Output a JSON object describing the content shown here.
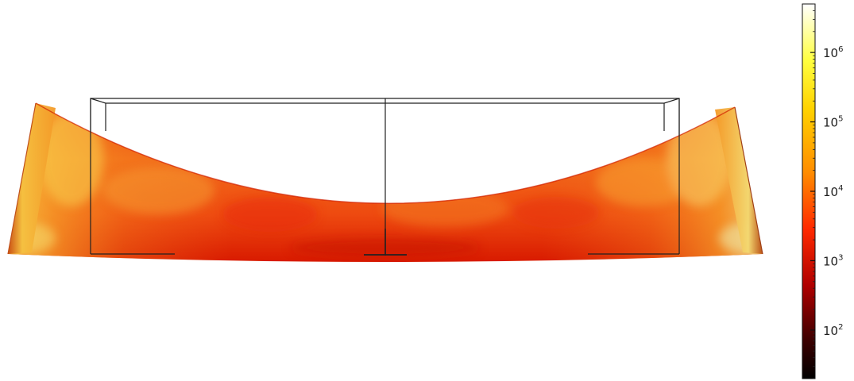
{
  "chart_data": {
    "type": "heatmap",
    "title": "",
    "colorbar": {
      "scale": "log",
      "range": [
        20,
        5000000
      ],
      "ticks": [
        {
          "value": 100,
          "base": "10",
          "exponent": "2"
        },
        {
          "value": 1000,
          "base": "10",
          "exponent": "3"
        },
        {
          "value": 10000,
          "base": "10",
          "exponent": "4"
        },
        {
          "value": 100000,
          "base": "10",
          "exponent": "5"
        },
        {
          "value": 1000000,
          "base": "10",
          "exponent": "6"
        }
      ],
      "colormap": [
        "#000000",
        "#8b0000",
        "#ff0000",
        "#ff8c00",
        "#ffff00",
        "#ffffff"
      ],
      "placement": "right"
    },
    "field": {
      "description_colors": [
        "#d81e00",
        "#f04a0a",
        "#f57a1c",
        "#f9b23a",
        "#ede48a"
      ],
      "dominant_range": [
        300,
        3000
      ],
      "corner_peak": 30000
    }
  }
}
